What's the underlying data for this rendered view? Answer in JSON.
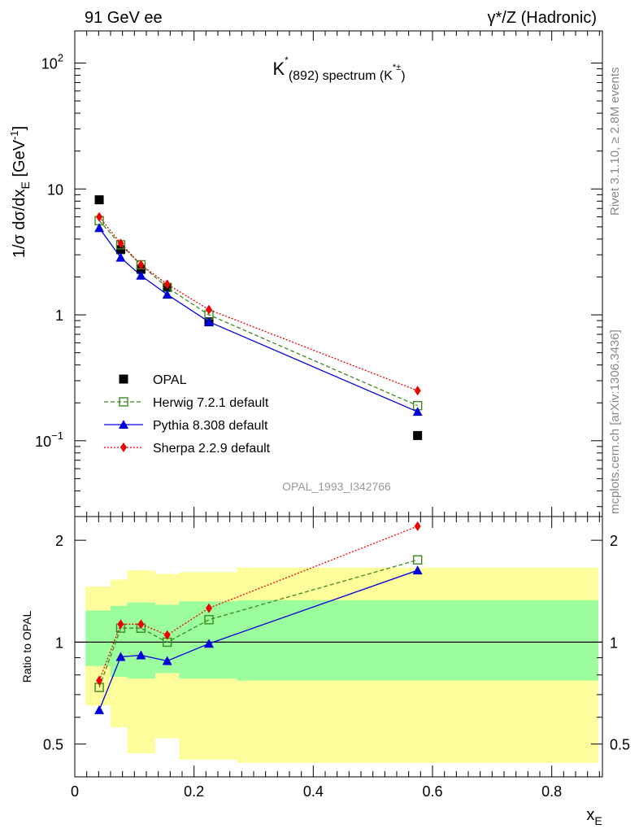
{
  "header": {
    "left": "91 GeV ee",
    "right": "γ*/Z (Hadronic)"
  },
  "side_labels": {
    "rivet": "Rivet 3.1.10, ≥ 2.8M events",
    "mcplots": "mcplots.cern.ch [arXiv:1306.3436]"
  },
  "colors": {
    "opal": "#000000",
    "herwig": "#3a8a1e",
    "pythia": "#0000dd",
    "sherpa": "#ee0000",
    "band_outer": "#fdfd9c",
    "band_inner": "#9cfd9c"
  },
  "chart_data": [
    {
      "type": "scatter",
      "title": "K*(892) spectrum (K*±)",
      "ylabel": "1/σ dσ/dx_E [GeV⁻¹]",
      "analysis_tag": "OPAL_1993_I342766",
      "ylog": true,
      "xlim": [
        0,
        0.885
      ],
      "ylim": [
        0.025,
        180
      ],
      "y_ticks": [
        {
          "v": 0.1,
          "b": "10",
          "e": "−1"
        },
        {
          "v": 1,
          "b": "1",
          "e": ""
        },
        {
          "v": 10,
          "b": "10",
          "e": ""
        },
        {
          "v": 100,
          "b": "10",
          "e": "2"
        }
      ],
      "legend": {
        "placement": "lower-left",
        "entries": [
          "OPAL",
          "Herwig 7.2.1 default",
          "Pythia 8.308 default",
          "Sherpa 2.2.9 default"
        ]
      },
      "x": [
        0.041,
        0.077,
        0.111,
        0.155,
        0.225,
        0.575
      ],
      "series": [
        {
          "name": "OPAL",
          "marker": "square",
          "values": [
            8.2,
            3.3,
            2.3,
            1.65,
            0.88,
            0.11
          ]
        },
        {
          "name": "Herwig 7.2.1 default",
          "marker": "open-square",
          "line": "dashed",
          "values": [
            5.6,
            3.6,
            2.5,
            1.65,
            1.0,
            0.19
          ]
        },
        {
          "name": "Pythia 8.308 default",
          "marker": "triangle",
          "line": "solid",
          "values": [
            4.9,
            2.85,
            2.05,
            1.45,
            0.88,
            0.17
          ]
        },
        {
          "name": "Sherpa 2.2.9 default",
          "marker": "diamond",
          "line": "dotted",
          "values": [
            6.0,
            3.7,
            2.5,
            1.75,
            1.1,
            0.25
          ]
        }
      ]
    },
    {
      "type": "line",
      "ylabel": "Ratio to OPAL",
      "xlabel": "x_E",
      "ylog": true,
      "xlim": [
        0,
        0.885
      ],
      "ylim": [
        0.4,
        2.35
      ],
      "x_ticks": [
        "0",
        "0.2",
        "0.4",
        "0.6",
        "0.8"
      ],
      "y_ticks": [
        "0.5",
        "1",
        "2"
      ],
      "reference_line": 1,
      "uncertainty_bands": {
        "x_edges": [
          0.018,
          0.045,
          0.06,
          0.088,
          0.135,
          0.175,
          0.272,
          0.878
        ],
        "outer_low": [
          0.65,
          0.65,
          0.56,
          0.47,
          0.52,
          0.45,
          0.44
        ],
        "outer_high": [
          1.46,
          1.46,
          1.53,
          1.63,
          1.59,
          1.61,
          1.66
        ],
        "inner_low": [
          0.85,
          0.85,
          0.79,
          0.78,
          0.81,
          0.78,
          0.77
        ],
        "inner_high": [
          1.24,
          1.24,
          1.28,
          1.31,
          1.29,
          1.32,
          1.33
        ]
      },
      "x": [
        0.041,
        0.077,
        0.111,
        0.155,
        0.225,
        0.575
      ],
      "series": [
        {
          "name": "Herwig 7.2.1 default",
          "marker": "open-square",
          "line": "dashed",
          "values": [
            0.735,
            1.1,
            1.1,
            1.0,
            1.165,
            1.75
          ]
        },
        {
          "name": "Pythia 8.308 default",
          "marker": "triangle",
          "line": "solid",
          "values": [
            0.63,
            0.905,
            0.915,
            0.88,
            0.99,
            1.63
          ]
        },
        {
          "name": "Sherpa 2.2.9 default",
          "marker": "diamond",
          "line": "dotted",
          "values": [
            0.77,
            1.13,
            1.13,
            1.05,
            1.26,
            2.2
          ]
        }
      ]
    }
  ]
}
